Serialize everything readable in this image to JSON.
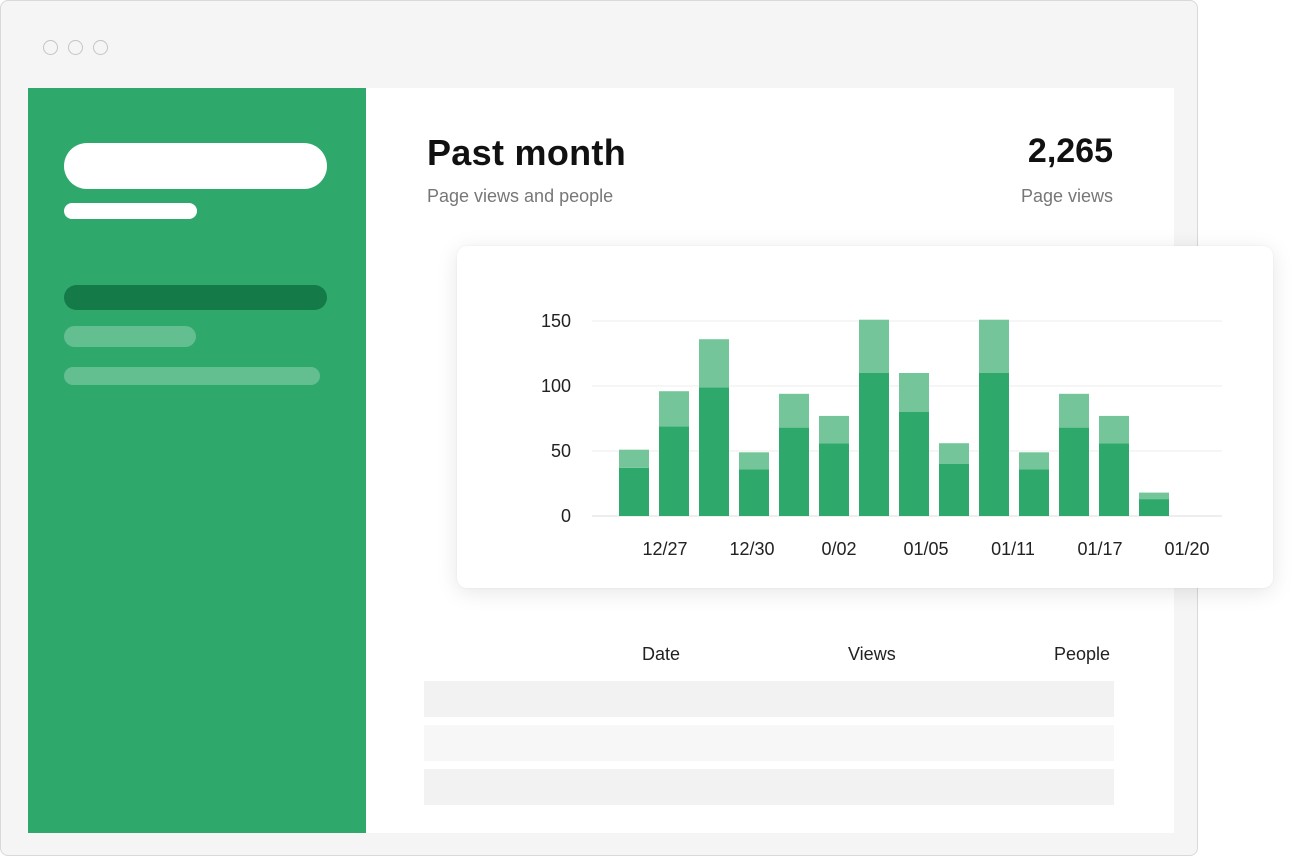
{
  "colors": {
    "brand_green": "#2fa86b",
    "light_green": "#74c69a",
    "dark_green": "#137a48",
    "row_gray": "#f2f2f2"
  },
  "header": {
    "title": "Past month",
    "subtitle": "Page views and people",
    "stat_value": "2,265",
    "stat_label": "Page views"
  },
  "table": {
    "columns": [
      "Date",
      "Views",
      "People"
    ],
    "rows": 3
  },
  "chart_data": {
    "type": "bar",
    "stacked": true,
    "x_tick_labels": [
      "12/27",
      "12/30",
      "0/02",
      "01/05",
      "01/11",
      "01/17",
      "01/20"
    ],
    "y_ticks": [
      0,
      50,
      100,
      150
    ],
    "ylim": [
      0,
      150
    ],
    "grid": true,
    "series": [
      {
        "color": "#2fa86b",
        "values": [
          37,
          69,
          99,
          36,
          68,
          56,
          110,
          80,
          40,
          110,
          36,
          68,
          56,
          13
        ]
      },
      {
        "color": "#74c69a",
        "values": [
          14,
          27,
          37,
          13,
          26,
          21,
          41,
          30,
          16,
          41,
          13,
          26,
          21,
          5
        ]
      }
    ]
  }
}
